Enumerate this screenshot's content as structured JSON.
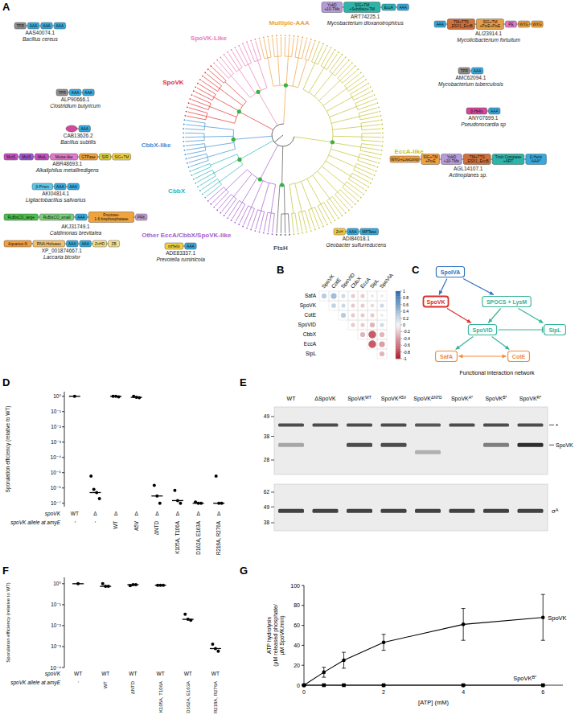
{
  "chart_data": [
    {
      "panel": "B",
      "type": "heatmap",
      "rows": [
        "SafA",
        "SpoVK",
        "CotE",
        "SpoVID",
        "CbbX",
        "EccA",
        "SipL"
      ],
      "columns": [
        "SpoVK",
        "CotE",
        "SpoVID",
        "CbbX",
        "EccA",
        "SipL",
        "SpoVIA"
      ],
      "cells": [
        [
          0.3,
          0.4,
          0.2,
          -0.2,
          -0.2,
          -0.1,
          0.1
        ],
        [
          null,
          0.25,
          0.2,
          -0.2,
          -0.2,
          -0.15,
          0.2
        ],
        [
          null,
          null,
          0.3,
          -0.2,
          -0.2,
          -0.2,
          0.1
        ],
        [
          null,
          null,
          null,
          -0.2,
          -0.2,
          -0.3,
          0.2
        ],
        [
          null,
          null,
          null,
          null,
          -0.3,
          -0.7,
          -0.3
        ],
        [
          null,
          null,
          null,
          null,
          null,
          -0.7,
          -0.4
        ],
        [
          null,
          null,
          null,
          null,
          null,
          null,
          -0.3
        ]
      ],
      "colorbar": {
        "range": [
          -1,
          1
        ],
        "ticks": [
          1,
          0.8,
          0.6,
          0.4,
          0.2,
          0,
          -0.2,
          -0.4,
          -0.6,
          -0.8,
          -1
        ]
      }
    },
    {
      "panel": "D",
      "type": "scatter",
      "log": "y",
      "color": "#000000",
      "marker": "circle",
      "ylabel": "Sporulation efficiency (relative to WT)",
      "row_labels": [
        "spoVK",
        "spoVK allele at amyE"
      ],
      "strains": [
        "WT",
        "Δ",
        "Δ",
        "Δ",
        "Δ",
        "Δ",
        "Δ",
        "Δ"
      ],
      "categories": [
        "-",
        "-",
        "WT",
        "A5V",
        "ΔNTD",
        "K105A, T106A",
        "D162A, E163A",
        "R218A, R276A"
      ],
      "values": [
        [
          1
        ],
        [
          6e-06,
          8e-07,
          5e-07,
          2e-07
        ],
        [
          1,
          1,
          0.9
        ],
        [
          1,
          0.85,
          0.8
        ],
        [
          1.5e-06,
          3e-07,
          1e-07
        ],
        [
          7e-07,
          1.5e-07,
          1e-07
        ],
        [
          1.2e-07,
          1e-07,
          1e-07
        ],
        [
          6e-06,
          1e-07,
          1e-07
        ]
      ],
      "medians": [
        1,
        5e-07,
        1,
        0.85,
        3e-07,
        1.5e-07,
        1e-07,
        1e-07
      ],
      "ylim": [
        6e-08,
        2
      ],
      "yticks": [
        {
          "value": 1e-07,
          "label": "10⁻⁷"
        },
        {
          "value": 1e-06,
          "label": "10⁻⁶"
        },
        {
          "value": 1e-05,
          "label": "10⁻⁵"
        },
        {
          "value": 0.0001,
          "label": "10⁻⁴"
        },
        {
          "value": 0.001,
          "label": "10⁻³"
        },
        {
          "value": 0.01,
          "label": "10⁻²"
        },
        {
          "value": 0.1,
          "label": "10⁻¹"
        },
        {
          "value": 1,
          "label": "10⁰"
        }
      ]
    },
    {
      "panel": "F",
      "type": "scatter",
      "log": "y",
      "color": "#000000",
      "marker": "circle",
      "ylabel": "Sporulation efficiency (relative to WT)",
      "row_labels": [
        "spoVK",
        "spoVK allele at amyE"
      ],
      "strains": [
        "WT",
        "WT",
        "WT",
        "WT",
        "WT",
        "WT"
      ],
      "categories": [
        "-",
        "WT",
        "ΔNTD",
        "K105A, T106A",
        "D162A, E163A",
        "R218A, R276A"
      ],
      "values": [
        [
          1
        ],
        [
          1,
          0.75,
          0.75
        ],
        [
          0.8,
          0.9,
          0.9
        ],
        [
          0.85,
          0.85,
          0.85
        ],
        [
          0.035,
          0.02,
          0.018
        ],
        [
          0.0013,
          0.0008,
          0.0006
        ]
      ],
      "medians": [
        1,
        0.75,
        0.9,
        0.85,
        0.02,
        0.0008
      ],
      "ylim": [
        0.0001,
        2
      ],
      "yticks": [
        {
          "value": 0.0001,
          "label": "10⁻⁴"
        },
        {
          "value": 0.001,
          "label": "10⁻³"
        },
        {
          "value": 0.01,
          "label": "10⁻²"
        },
        {
          "value": 0.1,
          "label": "10⁻¹"
        },
        {
          "value": 1,
          "label": "10⁰"
        }
      ]
    },
    {
      "panel": "G",
      "type": "line",
      "xlabel": "[ATP] (mM)",
      "ylabel": [
        "ATP hydrolysis",
        "(µM released phosphate/",
        "µM SpoVK/min)"
      ],
      "xlim": [
        0,
        6.5
      ],
      "ylim": [
        0,
        100
      ],
      "xticks": [
        0,
        2,
        4,
        6
      ],
      "yticks": [
        0,
        20,
        40,
        60,
        80,
        100
      ],
      "series": [
        {
          "name": "SpoVK",
          "color": "#000000",
          "marker": "circle",
          "x": [
            0,
            0.5,
            1,
            2,
            4,
            6
          ],
          "values": [
            0,
            13,
            25,
            43,
            61,
            68
          ],
          "errors": [
            0,
            5,
            8,
            8,
            16,
            23
          ]
        },
        {
          "name": "SpoVK",
          "superscript": "B*",
          "color": "#000000",
          "marker": "square",
          "x": [
            0,
            0.5,
            1,
            2,
            4,
            6
          ],
          "values": [
            0,
            0,
            0,
            0,
            0,
            0
          ],
          "errors": [
            0,
            0,
            0,
            0,
            0,
            0
          ]
        }
      ]
    }
  ],
  "diagrams": {
    "A": {
      "letter": "A",
      "clades": [
        {
          "label": "EccA-like",
          "color": "#c2c232",
          "leaves": 62
        },
        {
          "label": "FtsH",
          "color": "#555555",
          "leaves": 4
        },
        {
          "label": "Other EccA/CbbX/SpoVK-like",
          "color": "#a45cc8",
          "leaves": 18
        },
        {
          "label": "CbbX",
          "color": "#2bb5bd",
          "leaves": 8
        },
        {
          "label": "CbbX-like",
          "color": "#3c8fd3",
          "leaves": 12
        },
        {
          "label": "SpoVK",
          "color": "#e0302f",
          "leaves": 14
        },
        {
          "label": "SpoVK-Like",
          "color": "#ea7ab4",
          "leaves": 12
        },
        {
          "label": "Multiple-AAA",
          "color": "#f0a040",
          "leaves": 14
        }
      ],
      "architectures": [
        {
          "accession": "AAS40074.1",
          "species": "Bacillus cereus",
          "domains": [
            {
              "label": [
                "TPR"
              ],
              "color": "#8f8f8f"
            },
            {
              "label": [
                "AAA"
              ],
              "color": "#36a9dd"
            },
            {
              "label": [
                "AAA"
              ],
              "color": "#36a9dd"
            },
            {
              "label": [
                "AAA"
              ],
              "color": "#36a9dd"
            }
          ]
        },
        {
          "accession": "ALP90666.1",
          "species": "Clostridium butyricum",
          "domains": [
            {
              "label": [
                "TPR"
              ],
              "color": "#8f8f8f"
            },
            {
              "label": [
                "AAA"
              ],
              "color": "#36a9dd"
            },
            {
              "label": [
                "AAA"
              ],
              "color": "#36a9dd"
            }
          ]
        },
        {
          "accession": "CAB13626.2",
          "species": "Bacillus subtilis",
          "domains": [
            {
              "color": "#d4479a"
            },
            {
              "label": [
                "AAA"
              ],
              "color": "#36a9dd"
            }
          ]
        },
        {
          "accession": "ABR48693.1",
          "species": "Alkaliphilus metalliredigens",
          "domains": [
            {
              "label": [
                "MutS"
              ],
              "color": "#c64fc4"
            },
            {
              "label": [
                "MutS"
              ],
              "color": "#9b59d0"
            },
            {
              "label": [
                "MutL"
              ],
              "color": "#c64fc4"
            },
            {
              "label": [
                "Mutss-like"
              ],
              "color": "#e07ac8"
            },
            {
              "label": [
                "GTPase"
              ],
              "color": "#f0a33b"
            },
            {
              "label": [
                "SIR"
              ],
              "color": "#dcd03a"
            },
            {
              "label": [
                "SIG+TM"
              ],
              "color": "#f2d544"
            }
          ]
        },
        {
          "accession": "AKI04814.1",
          "species": "Ligilactobacillus salivarius",
          "domains": [
            {
              "label": [
                "β-Prism"
              ],
              "color": "#5bc8e8"
            },
            {
              "label": [
                "AAA"
              ],
              "color": "#36a9dd"
            },
            {
              "label": [
                "AAA"
              ],
              "color": "#36a9dd"
            }
          ]
        },
        {
          "accession": "AKJ31749.1",
          "species": "Caldimonas brevitalea",
          "domains": [
            {
              "label": [
                "RuBisCO_large"
              ],
              "color": "#4cc04c"
            },
            {
              "label": [
                "RuBisCO_small"
              ],
              "color": "#7ad07a"
            },
            {
              "label": [
                "AAA"
              ],
              "color": "#36a9dd"
            },
            {
              "label": [
                "Fructose-",
                "1-6-bisphosphatase"
              ],
              "color": "#f0a33b"
            },
            {
              "label": [
                "PRK"
              ],
              "color": "#c0a0d0"
            }
          ]
        },
        {
          "accession": "XP_001874667.1",
          "species": "Laccaria bicolor",
          "domains": [
            {
              "label": [
                "Aquarius-N"
              ],
              "color": "#f0a040"
            },
            {
              "label": [
                "RNA-Helicase"
              ],
              "color": "#f4c070"
            },
            {
              "label": [
                "AAA"
              ],
              "color": "#36a9dd"
            },
            {
              "label": [
                "AAA"
              ],
              "color": "#36a9dd"
            },
            {
              "label": [
                "ZnHD"
              ],
              "color": "#f6e08a"
            },
            {
              "label": [
                "ZB"
              ],
              "color": "#f6e08a"
            }
          ]
        },
        {
          "accession": "ART74225.1",
          "species": "Mycobacterium dioxanotrophicus",
          "domains": [
            {
              "label": [
                "YukD",
                "+10-TMs"
              ],
              "color": "#b59cd8"
            },
            {
              "label": [
                "SIG+TM",
                "+Subtilisin+TM"
              ],
              "color": "#2bb5a8"
            },
            {
              "label": [
                "EccA"
              ],
              "color": "#2bb5bd"
            },
            {
              "label": [
                "AAA"
              ],
              "color": "#36a9dd"
            }
          ]
        },
        {
          "accession": "ALI23914.1",
          "species": "Mycolicibacterium fortuitum",
          "domains": [
            {
              "label": [
                "AAA"
              ],
              "color": "#36a9dd"
            },
            {
              "label": [
                "TM+TTS",
                "_ESX1_EccB"
              ],
              "color": "#d0703a"
            },
            {
              "label": [
                "SIG+TM",
                "+PtxE+PtxE"
              ],
              "color": "#e3a04a"
            },
            {
              "label": [
                "PE"
              ],
              "color": "#e07ac8"
            },
            {
              "label": [
                "WXG"
              ],
              "color": "#f0a33b"
            },
            {
              "label": [
                "WXG"
              ],
              "color": "#f0a33b"
            }
          ]
        },
        {
          "accession": "AMC62094.1",
          "species": "Mycobacterium tuberculosis",
          "domains": [
            {
              "label": [
                "TPR"
              ],
              "color": "#8f8f8f"
            },
            {
              "label": [
                "AAA"
              ],
              "color": "#36a9dd"
            }
          ]
        },
        {
          "accession": "ANY07699.1",
          "species": "Pseudonocardia sp",
          "domains": [
            {
              "label": [
                "β-Helix"
              ],
              "color": "#d4479a"
            },
            {
              "label": [
                "AAA"
              ],
              "color": "#36a9dd"
            }
          ]
        },
        {
          "accession": "AGL14107.1",
          "species": "Actinoplanes sp.",
          "domains": [
            {
              "label": [
                "WXG+Lowcomp"
              ],
              "color": "#f0a040"
            },
            {
              "label": [
                "SIG+TM",
                "+PtxE"
              ],
              "color": "#f0a040"
            },
            {
              "label": [
                "YukD",
                "+10-TMs"
              ],
              "color": "#b59cd8"
            },
            {
              "label": [
                "TM+TTS",
                "_ESX1_EccB"
              ],
              "color": "#d0703a"
            },
            {
              "label": [
                "Tmin Compase",
                "+ART"
              ],
              "color": "#2bb5a8"
            },
            {
              "label": [
                "β-Helix",
                "AAA*"
              ],
              "color": "#36a9dd"
            }
          ]
        },
        {
          "accession": "ADI84018.1",
          "species": "Geobacter sulfurreducens",
          "domains": [
            {
              "label": [
                "ZnH"
              ],
              "color": "#f0d040"
            },
            {
              "label": [
                "AAA"
              ],
              "color": "#36a9dd"
            },
            {
              "label": [
                "MPTase"
              ],
              "color": "#36a9dd"
            }
          ]
        },
        {
          "accession": "ADE83337.1",
          "species": "Prevotella ruminicola",
          "domains": [
            {
              "label": [
                "mHelix"
              ],
              "color": "#f0d040"
            },
            {
              "label": [
                "AAA"
              ],
              "color": "#36a9dd"
            }
          ]
        }
      ]
    },
    "C": {
      "letter": "C",
      "title": "Functional interaction network",
      "nodes": [
        {
          "label": "SpoIVA",
          "color": "#2e6fbd"
        },
        {
          "label": "SpoVK",
          "color": "#d9302c"
        },
        {
          "label": "SPOCS + LysM",
          "color": "#34b39a"
        },
        {
          "label": "SpoVID",
          "color": "#34b39a"
        },
        {
          "label": "SipL",
          "color": "#34b39a"
        },
        {
          "label": "SafA",
          "color": "#f08a40"
        },
        {
          "label": "CotE",
          "color": "#f08a40"
        }
      ],
      "edges": [
        {
          "from": 0,
          "to": 1,
          "kind": "activates"
        },
        {
          "from": 0,
          "to": 2,
          "kind": "activates"
        },
        {
          "from": 1,
          "to": 3,
          "kind": "activates"
        },
        {
          "from": 2,
          "to": 3,
          "kind": "activates"
        },
        {
          "from": 2,
          "to": 4,
          "kind": "activates"
        },
        {
          "from": 3,
          "to": 4,
          "kind": "inhibits"
        },
        {
          "from": 3,
          "to": 5,
          "kind": "activates"
        },
        {
          "from": 3,
          "to": 6,
          "kind": "activates"
        },
        {
          "from": 5,
          "to": 6,
          "kind": "mutual"
        }
      ]
    },
    "E": {
      "letter": "E",
      "lanes": [
        {
          "label": "WT"
        },
        {
          "label": "ΔSpoVK"
        },
        {
          "label": "SpoVK",
          "superscript": "WT"
        },
        {
          "label": "SpoVK",
          "superscript": "A5V"
        },
        {
          "label": "SpoVK",
          "superscript": "ΔNTD"
        },
        {
          "label": "SpoVK",
          "superscript": "A*"
        },
        {
          "label": "SpoVK",
          "superscript": "B*"
        },
        {
          "label": "SpoVK",
          "superscript": "R*"
        }
      ],
      "top_markers": [
        49,
        38,
        28
      ],
      "bottom_markers": [
        62,
        49,
        38
      ],
      "bands": {
        "nonspecific": {
          "label": "*",
          "kda": 44,
          "intensity": [
            0.8,
            0.8,
            0.8,
            0.8,
            0.75,
            0.8,
            0.8,
            0.8
          ]
        },
        "spovk": {
          "label": "SpoVK",
          "kda": [
            34,
            34,
            34,
            34,
            31,
            34,
            34,
            34
          ],
          "intensity": [
            0.35,
            0,
            0.8,
            0.8,
            0.3,
            0,
            0.55,
            0.95
          ]
        },
        "sigma": {
          "label": "σ",
          "superscript": "A",
          "kda": 46,
          "intensity": [
            0.85,
            0.85,
            0.85,
            0.85,
            0.85,
            0.85,
            0.85,
            0.85
          ]
        }
      }
    }
  }
}
